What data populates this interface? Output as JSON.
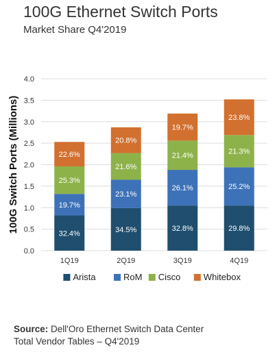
{
  "header": {
    "title": "100G Ethernet Switch Ports",
    "subtitle": "Market Share Q4'2019"
  },
  "source": {
    "label": "Source:",
    "line1": " Dell'Oro Ethernet Switch Data Center",
    "line2": "Total Vendor Tables – Q4'2019"
  },
  "chart_data": {
    "type": "bar",
    "stacked": true,
    "title": "100G Ethernet Switch Ports",
    "subtitle": "Market Share Q4'2019",
    "ylabel": "100G Switch Ports (Millions)",
    "xlabel": "",
    "ylim": [
      0,
      4.0
    ],
    "yticks": [
      "0.0",
      "0.5",
      "1.0",
      "1.5",
      "2.0",
      "2.5",
      "3.0",
      "3.5",
      "4.0"
    ],
    "grid": true,
    "legend_position": "bottom",
    "categories": [
      "1Q19",
      "2Q19",
      "3Q19",
      "4Q19"
    ],
    "totals": [
      2.53,
      2.87,
      3.19,
      3.52
    ],
    "series": [
      {
        "name": "Arista",
        "color": "#1f4e6e",
        "values": [
          0.82,
          0.99,
          1.05,
          1.05
        ],
        "labels": [
          "32.4%",
          "34.5%",
          "32.8%",
          "29.8%"
        ]
      },
      {
        "name": "RoM",
        "color": "#3d72b8",
        "values": [
          0.5,
          0.66,
          0.83,
          0.89
        ],
        "labels": [
          "19.7%",
          "23.1%",
          "26.1%",
          "25.2%"
        ]
      },
      {
        "name": "Cisco",
        "color": "#8db24a",
        "values": [
          0.64,
          0.62,
          0.68,
          0.75
        ],
        "labels": [
          "25.3%",
          "21.6%",
          "21.4%",
          "21.3%"
        ]
      },
      {
        "name": "Whitebox",
        "color": "#d2702f",
        "values": [
          0.57,
          0.6,
          0.63,
          0.83
        ],
        "labels": [
          "22.6%",
          "20.8%",
          "19.7%",
          "23.8%"
        ]
      }
    ]
  }
}
